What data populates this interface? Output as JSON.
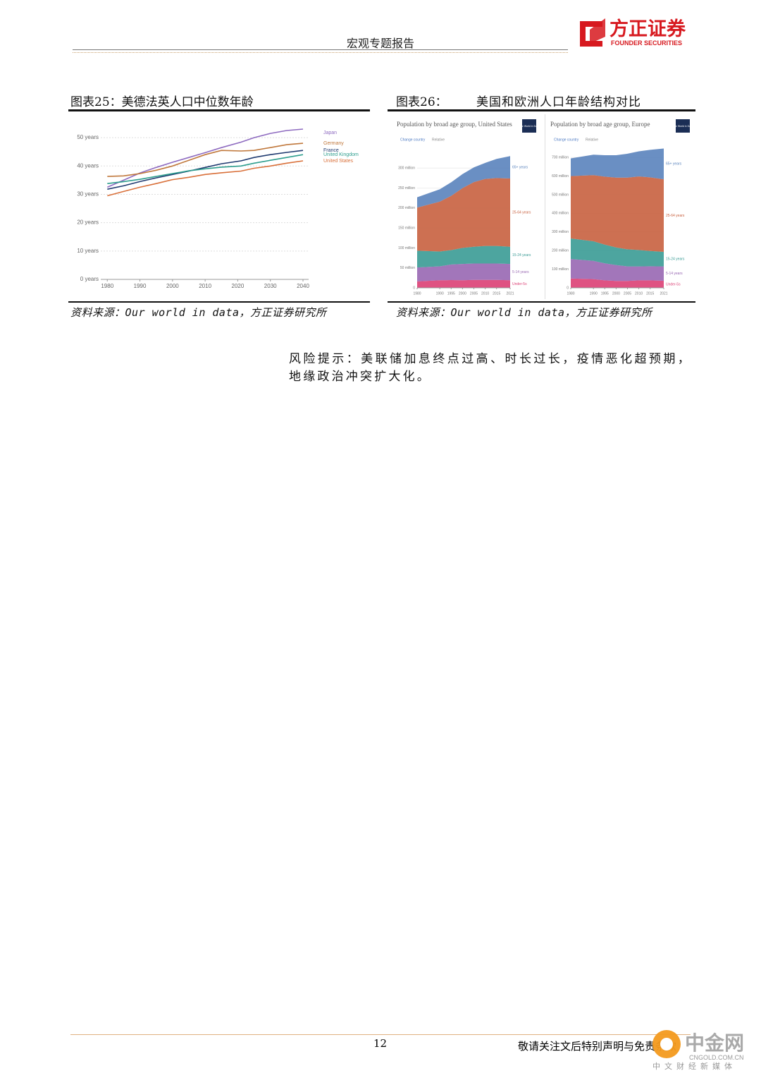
{
  "header": {
    "title": "宏观专题报告",
    "logo": "方正证券",
    "logo_en": "FOUNDER SECURITIES"
  },
  "figures": [
    {
      "caption": "图表25：美德法英人口中位数年龄",
      "source": "资料来源：Our world in data，方正证券研究所"
    },
    {
      "caption": "图表26：",
      "caption_title": "美国和欧洲人口年龄结构对比",
      "source": "资料来源：Our world in data，方正证券研究所"
    }
  ],
  "risk": "风险提示：美联储加息终点过高、时长过长，疫情恶化超预期，地缘政治冲突扩大化。",
  "footer": {
    "page": 12,
    "notice": "敬请关注文后特别声明与免责条款",
    "watermark": "中金网",
    "watermark_sub": "CNGOLD.COM.CN",
    "watermark_tag": "中文财经新媒体"
  },
  "chart_data": [
    {
      "type": "line",
      "x": [
        1980,
        1985,
        1990,
        1995,
        2000,
        2005,
        2010,
        2015,
        2021,
        2025,
        2030,
        2035,
        2040
      ],
      "xlim": [
        1978,
        2040
      ],
      "xticks": [
        1980,
        1990,
        2000,
        2010,
        2020,
        2030,
        2040
      ],
      "ylim": [
        0,
        55
      ],
      "yticks": [
        {
          "value": 0,
          "label": "0 years"
        },
        {
          "value": 10,
          "label": "10 years"
        },
        {
          "value": 20,
          "label": "20 years"
        },
        {
          "value": 30,
          "label": "30 years"
        },
        {
          "value": 40,
          "label": "40 years"
        },
        {
          "value": 50,
          "label": "50 years"
        }
      ],
      "grid": true,
      "series": [
        {
          "name": "Japan",
          "color": "#8e6bc0",
          "values": [
            32.5,
            35,
            37.5,
            39.5,
            41.3,
            43,
            44.7,
            46.5,
            48.4,
            50,
            51.5,
            52.5,
            53
          ]
        },
        {
          "name": "Germany",
          "color": "#c0783c",
          "values": [
            36.3,
            36.5,
            37.3,
            38.5,
            40,
            42,
            44,
            45.5,
            45.3,
            45.5,
            46.5,
            47.5,
            48
          ]
        },
        {
          "name": "France",
          "color": "#1f3a70",
          "values": [
            31.8,
            33,
            34.5,
            35.8,
            37,
            38.2,
            39.5,
            40.8,
            41.8,
            43,
            44,
            44.8,
            45.5
          ]
        },
        {
          "name": "United Kingdom",
          "color": "#2e9e8e",
          "values": [
            33.8,
            34.5,
            35.3,
            36.3,
            37.3,
            38.3,
            39,
            39.6,
            40,
            41,
            42,
            43,
            44
          ]
        },
        {
          "name": "United States",
          "color": "#d9703a",
          "values": [
            29.5,
            31,
            32.5,
            33.8,
            35.2,
            36,
            37,
            37.6,
            38.2,
            39.2,
            40,
            41,
            41.8
          ]
        }
      ]
    },
    {
      "type": "stacked-area",
      "title": "Population by broad age group, United States",
      "controls": [
        "Change country",
        "Relative"
      ],
      "logo": "Our World in Data",
      "x": [
        1980,
        1990,
        1995,
        2000,
        2005,
        2010,
        2015,
        2021
      ],
      "xlim": [
        1980,
        2021
      ],
      "xticks": [
        1980,
        1990,
        1995,
        2000,
        2005,
        2010,
        2015,
        2021
      ],
      "ylim": [
        0,
        350
      ],
      "yticks": [
        0,
        {
          "value": 50,
          "label": "50 million"
        },
        {
          "value": 100,
          "label": "100 million"
        },
        {
          "value": 150,
          "label": "150 million"
        },
        {
          "value": 200,
          "label": "200 million"
        },
        {
          "value": 250,
          "label": "250 million"
        },
        {
          "value": 300,
          "label": "300 million"
        }
      ],
      "series": [
        {
          "name": "Under-5s",
          "color": "#dc3f74",
          "values": [
            16,
            19,
            19.5,
            19,
            20,
            20,
            20,
            19
          ]
        },
        {
          "name": "5-14 years",
          "color": "#9867b2",
          "values": [
            35,
            35,
            39,
            41,
            41,
            41,
            41,
            41
          ]
        },
        {
          "name": "15-24 years",
          "color": "#3a9b95",
          "values": [
            42,
            37,
            36,
            40,
            42,
            44,
            44,
            43
          ]
        },
        {
          "name": "25-64 years",
          "color": "#c8603f",
          "values": [
            108,
            125,
            136,
            150,
            162,
            168,
            170,
            171
          ]
        },
        {
          "name": "65+ years",
          "color": "#5a83bd",
          "values": [
            26,
            31,
            34,
            35,
            37,
            40,
            48,
            56
          ]
        }
      ]
    },
    {
      "type": "stacked-area",
      "title": "Population by broad age group, Europe",
      "controls": [
        "Change country",
        "Relative"
      ],
      "logo": "Our World in Data",
      "x": [
        1980,
        1990,
        1995,
        2000,
        2005,
        2010,
        2015,
        2021
      ],
      "xlim": [
        1980,
        2021
      ],
      "xticks": [
        1980,
        1990,
        1995,
        2000,
        2005,
        2010,
        2015,
        2021
      ],
      "ylim": [
        0,
        750
      ],
      "yticks": [
        0,
        {
          "value": 100,
          "label": "100 million"
        },
        {
          "value": 200,
          "label": "200 million"
        },
        {
          "value": 300,
          "label": "300 million"
        },
        {
          "value": 400,
          "label": "400 million"
        },
        {
          "value": 500,
          "label": "500 million"
        },
        {
          "value": 600,
          "label": "600 million"
        },
        {
          "value": 700,
          "label": "700 million"
        }
      ],
      "series": [
        {
          "name": "Under-5s",
          "color": "#dc3f74",
          "values": [
            50,
            47,
            40,
            37,
            37,
            40,
            40,
            38
          ]
        },
        {
          "name": "5-14 years",
          "color": "#9867b2",
          "values": [
            105,
            98,
            92,
            85,
            78,
            75,
            76,
            77
          ]
        },
        {
          "name": "15-24 years",
          "color": "#3a9b95",
          "values": [
            110,
            105,
            100,
            95,
            92,
            88,
            82,
            78
          ]
        },
        {
          "name": "25-64 years",
          "color": "#c8603f",
          "values": [
            335,
            355,
            365,
            375,
            385,
            395,
            395,
            390
          ]
        },
        {
          "name": "65+ years",
          "color": "#5a83bd",
          "values": [
            95,
            110,
            115,
            120,
            128,
            135,
            148,
            165
          ]
        }
      ]
    }
  ]
}
